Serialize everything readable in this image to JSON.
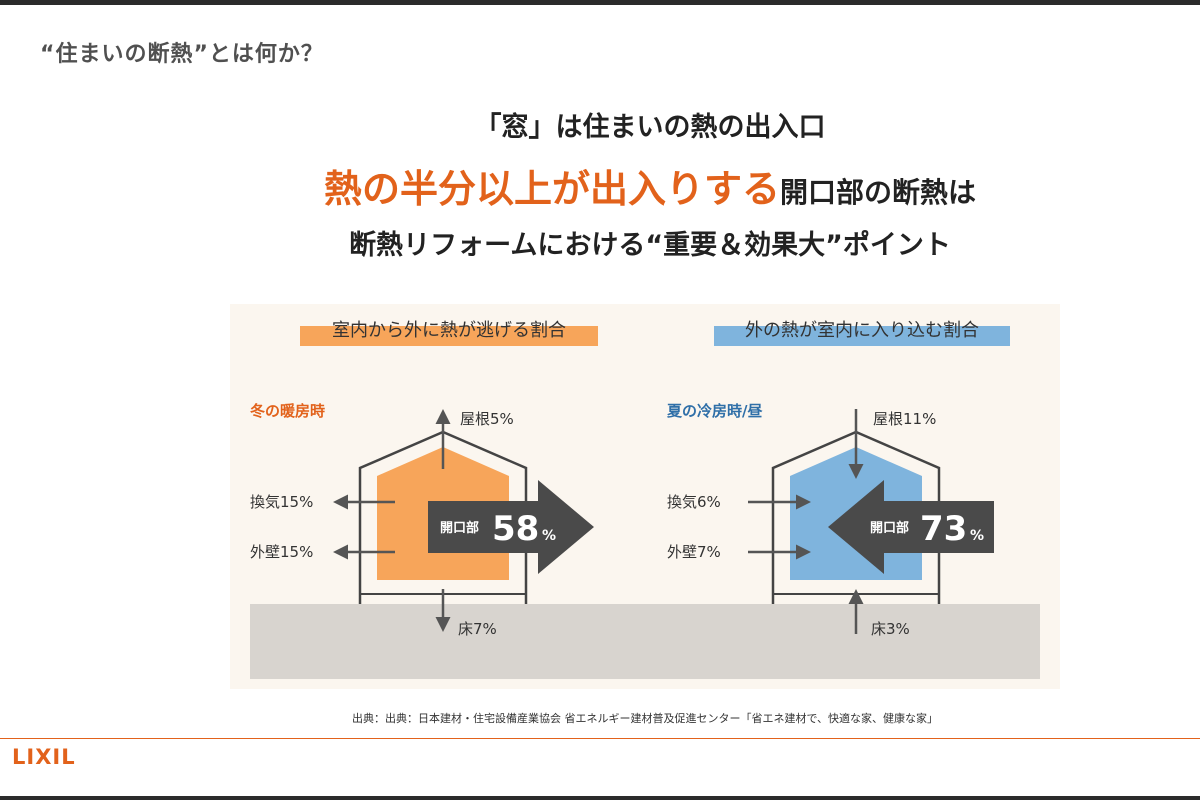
{
  "slide": {
    "title": "“住まいの断熱”とは何か？",
    "headline1": "「窓」は住まいの熱の出入口",
    "headline2_accent": "熱の半分以上が出入りする",
    "headline2_rest": "開口部の断熱は",
    "headline3": "断熱リフォームにおける“重要＆効果大”ポイント",
    "source": "出典：出典：日本建材・住宅設備産業協会 省エネルギー建材普及促進センター「省エネ建材で、快適な家、健康な家」",
    "logo": "LIXIL"
  },
  "colors": {
    "accent": "#e2621b",
    "winter": "#f7a55a",
    "summer": "#7fb4dd",
    "arrow": "#4a4a4a",
    "ground": "#d8d4cf"
  },
  "winter": {
    "heading": "室内から外に熱が逃げる割合",
    "season": "冬の暖房時",
    "roof": "屋根5%",
    "vent": "換気15%",
    "wall": "外壁15%",
    "floor": "床7%",
    "opening_label": "開口部",
    "opening_value": "58",
    "opening_unit": "%"
  },
  "summer": {
    "heading": "外の熱が室内に入り込む割合",
    "season": "夏の冷房時/昼",
    "roof": "屋根11%",
    "vent": "換気6%",
    "wall": "外壁7%",
    "floor": "床3%",
    "opening_label": "開口部",
    "opening_value": "73",
    "opening_unit": "%"
  }
}
